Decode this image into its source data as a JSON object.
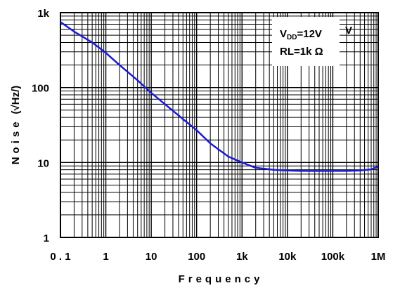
{
  "chart_data": {
    "type": "line",
    "title": "",
    "xlabel": "Frequency",
    "ylabel": "Noise",
    "ylabel_unit": "(√Hz/)",
    "x_scale": "log",
    "y_scale": "log",
    "xlim": [
      0.1,
      1000000
    ],
    "ylim": [
      1,
      1000
    ],
    "grid": true,
    "x_ticks": [
      0.1,
      1,
      10,
      100,
      1000,
      10000,
      100000,
      1000000
    ],
    "x_tick_labels": [
      "0 . 1",
      "1",
      "10",
      "100",
      "1k",
      "10k",
      "100k",
      "1M"
    ],
    "y_ticks": [
      1,
      10,
      100,
      1000
    ],
    "y_tick_labels": [
      "1",
      "10",
      "100",
      "1k"
    ],
    "legend": {
      "placement": "top-right",
      "vdd_label": "V",
      "vdd_subscript": "DD",
      "vdd_value": "=12V",
      "extra_mark": "V",
      "rl_label": "RL=1k Ω"
    },
    "series": [
      {
        "color": "#1a1ad6",
        "x": [
          0.1,
          0.2,
          0.5,
          1,
          2,
          5,
          10,
          20,
          50,
          100,
          200,
          500,
          1000,
          2000,
          5000,
          10000,
          20000,
          50000,
          100000,
          200000,
          400000,
          700000,
          1000000
        ],
        "y": [
          750,
          560,
          400,
          290,
          200,
          125,
          85,
          60,
          38,
          27,
          18,
          12,
          10,
          8.5,
          8,
          7.8,
          7.7,
          7.7,
          7.7,
          7.7,
          7.8,
          8.1,
          8.8
        ]
      }
    ]
  }
}
